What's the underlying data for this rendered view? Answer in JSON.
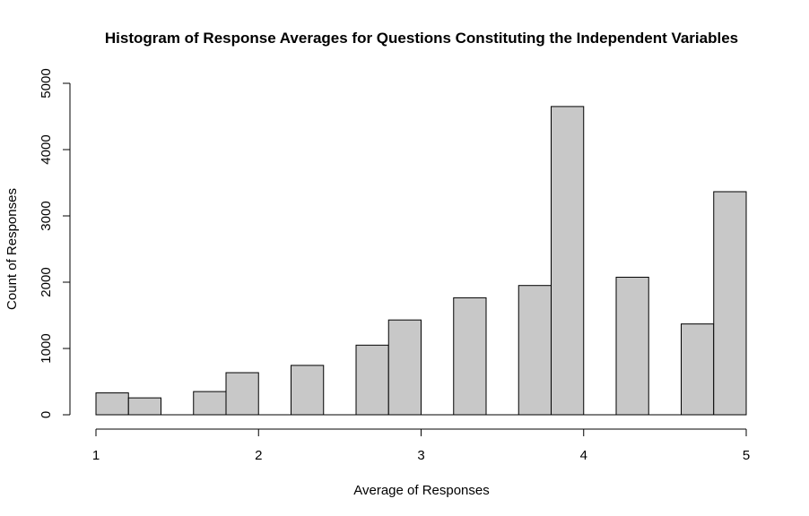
{
  "chart_data": {
    "type": "bar",
    "title": "Histogram of Response Averages for Questions Constituting the Independent Variables",
    "xlabel": "Average of Responses",
    "ylabel": "Count of Responses",
    "bin_edges": [
      1.0,
      1.2,
      1.4,
      1.6,
      1.8,
      2.0,
      2.2,
      2.4,
      2.6,
      2.8,
      3.0,
      3.2,
      3.4,
      3.6,
      3.8,
      4.0,
      4.2,
      4.4,
      4.6,
      4.8,
      5.0
    ],
    "values": [
      330,
      255,
      0,
      350,
      635,
      0,
      745,
      0,
      1050,
      1430,
      0,
      1765,
      0,
      1950,
      4650,
      0,
      2075,
      0,
      1370,
      3365
    ],
    "xlim": [
      1,
      5
    ],
    "ylim": [
      0,
      5000
    ],
    "x_ticks": [
      1,
      2,
      3,
      4,
      5
    ],
    "y_ticks": [
      0,
      1000,
      2000,
      3000,
      4000,
      5000
    ],
    "bar_color": "#c8c8c8"
  }
}
